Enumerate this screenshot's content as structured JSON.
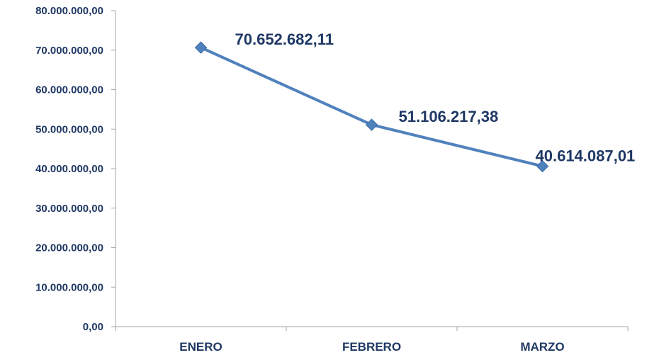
{
  "chart_data": {
    "type": "line",
    "categories": [
      "ENERO",
      "FEBRERO",
      "MARZO"
    ],
    "series": [
      {
        "values": [
          70652682.11,
          51106217.38,
          40614087.01
        ]
      }
    ],
    "data_labels": [
      "70.652.682,11",
      "51.106.217,38",
      "40.614.087,01"
    ],
    "ylim": [
      0,
      80000000
    ],
    "y_ticks": [
      0,
      10000000,
      20000000,
      30000000,
      40000000,
      50000000,
      60000000,
      70000000,
      80000000
    ],
    "y_tick_labels": [
      "0,00",
      "10.000.000,00",
      "20.000.000,00",
      "30.000.000,00",
      "40.000.000,00",
      "50.000.000,00",
      "60.000.000,00",
      "70.000.000,00",
      "80.000.000,00"
    ],
    "marker": "diamond",
    "grid": false,
    "legend": "none",
    "colors": {
      "line": "#4f81bd",
      "marker": "#4f81bd",
      "axis": "#a6a6a6",
      "text": "#1f3864"
    }
  }
}
